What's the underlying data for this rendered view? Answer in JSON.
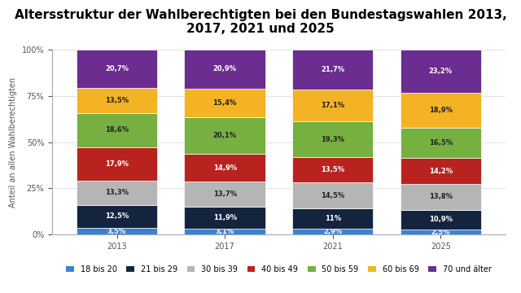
{
  "chart_data": {
    "type": "bar",
    "title": "Altersstruktur der Wahlberechtigten bei den Bundestagswahlen 2013, 2017, 2021 und 2025",
    "y_label": "Anteil an allen Wahlberechtigten",
    "categories": [
      "2013",
      "2017",
      "2021",
      "2025"
    ],
    "stacked": true,
    "data_labels": true,
    "grid": true,
    "legend": "lower center",
    "ylim": [
      0,
      100
    ],
    "yticks": [
      {
        "value": 0,
        "label": "0%"
      },
      {
        "value": 25,
        "label": "25%"
      },
      {
        "value": 50,
        "label": "50%"
      },
      {
        "value": 75,
        "label": "75%"
      },
      {
        "value": 100,
        "label": "100%"
      }
    ],
    "series": [
      {
        "name": "18 bis 20",
        "color": "#3b82d6",
        "values": [
          3.5,
          3.1,
          2.9,
          2.5
        ],
        "value_labels": [
          "3,5%",
          "3,1%",
          "2,9%",
          "2,5%"
        ]
      },
      {
        "name": "21 bis 29",
        "color": "#14243f",
        "values": [
          12.5,
          11.9,
          11,
          10.9
        ],
        "value_labels": [
          "12,5%",
          "11,9%",
          "11%",
          "10,9%"
        ]
      },
      {
        "name": "30 bis 39",
        "color": "#b5b5b5",
        "values": [
          13.3,
          13.7,
          14.5,
          13.8
        ],
        "value_labels": [
          "13,3%",
          "13,7%",
          "14,5%",
          "13,8%"
        ]
      },
      {
        "name": "40 bis 49",
        "color": "#b8231f",
        "values": [
          17.9,
          14.9,
          13.5,
          14.2
        ],
        "value_labels": [
          "17,9%",
          "14,9%",
          "13,5%",
          "14,2%"
        ]
      },
      {
        "name": "50 bis 59",
        "color": "#76b041",
        "values": [
          18.6,
          20.1,
          19.3,
          16.5
        ],
        "value_labels": [
          "18,6%",
          "20,1%",
          "19,3%",
          "16,5%"
        ]
      },
      {
        "name": "60 bis 69",
        "color": "#f3b324",
        "values": [
          13.5,
          15.4,
          17.1,
          18.9
        ],
        "value_labels": [
          "13,5%",
          "15,4%",
          "17,1%",
          "18,9%"
        ]
      },
      {
        "name": "70 und älter",
        "color": "#6b2d8f",
        "values": [
          20.7,
          20.9,
          21.7,
          23.2
        ],
        "value_labels": [
          "20,7%",
          "20,9%",
          "21,7%",
          "23,2%"
        ]
      }
    ]
  }
}
